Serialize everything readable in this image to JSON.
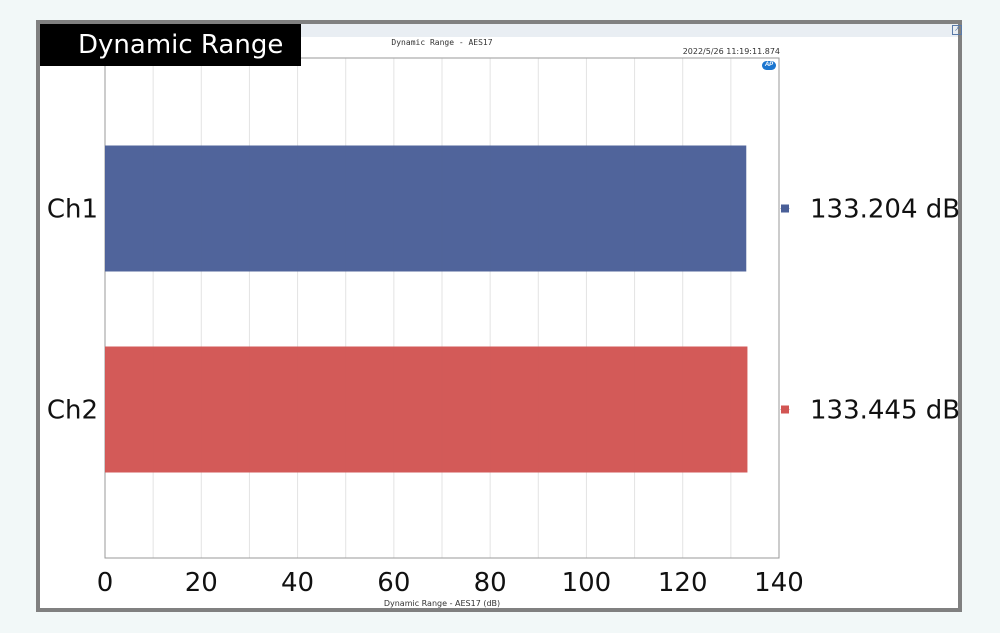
{
  "badge": {
    "text": "Dynamic Range"
  },
  "header": {
    "title": "Dynamic Range - AES17",
    "timestamp": "2022/5/26 11:19:11.874",
    "logo": "AP"
  },
  "colors": {
    "ch1": "#4a5f98",
    "ch2": "#d25553",
    "grid": "#e3e3e3",
    "axis": "#9a9a9a"
  },
  "chart_data": {
    "type": "bar",
    "orientation": "horizontal",
    "title": "Dynamic Range - AES17",
    "xlabel": "Dynamic Range - AES17 (dB)",
    "ylabel": "",
    "categories": [
      "Ch1",
      "Ch2"
    ],
    "values": [
      133.204,
      133.445
    ],
    "value_labels": [
      "133.204 dB",
      "133.445 dB"
    ],
    "xlim": [
      0,
      140
    ],
    "xticks": [
      0,
      20,
      40,
      60,
      80,
      100,
      120,
      140
    ],
    "minor_step": 10,
    "grid": true,
    "legend_position": "right"
  }
}
